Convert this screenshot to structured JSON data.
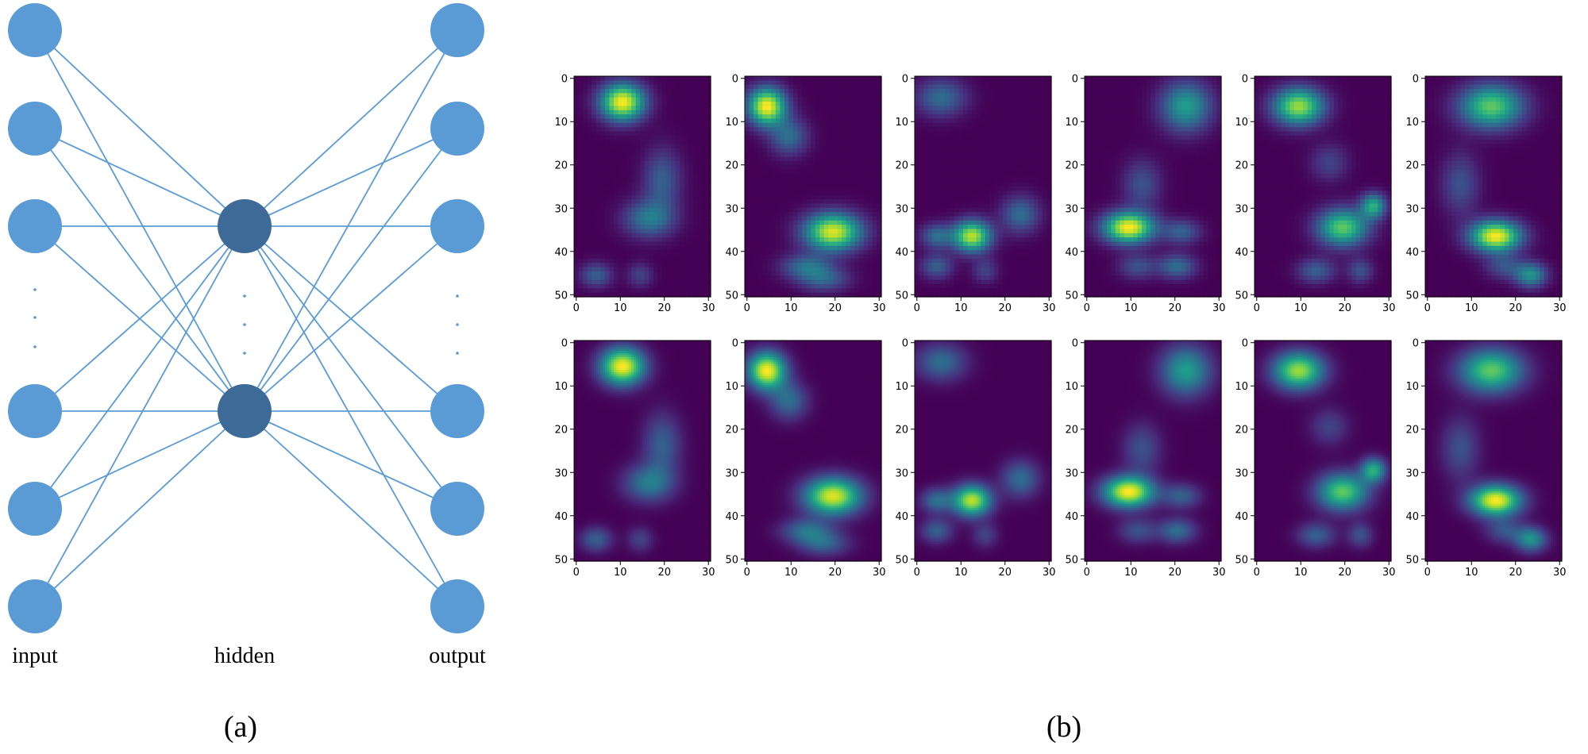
{
  "autoencoder": {
    "input_label": "input",
    "hidden_label": "hidden",
    "output_label": "output",
    "colors": {
      "outer_node": "#5b9bd5",
      "hidden_node": "#3e6a97",
      "edge": "#5b9bd5"
    },
    "input_nodes": 6,
    "hidden_nodes": 2,
    "output_nodes": 6
  },
  "panel_labels": {
    "a": "(a)",
    "b": "(b)"
  },
  "heatmaps": {
    "colormap": "viridis",
    "rows": 2,
    "columns": 6,
    "row_styles": [
      "pixelated",
      "smooth"
    ],
    "x_ticks": [
      "0",
      "10",
      "20",
      "30"
    ],
    "y_ticks": [
      "0",
      "10",
      "20",
      "30",
      "40",
      "50"
    ],
    "x_range": [
      0,
      31
    ],
    "y_range": [
      0,
      51
    ],
    "blobs": [
      [
        {
          "x": 11,
          "y": 6,
          "sx": 3.5,
          "sy": 3,
          "a": 1.0
        },
        {
          "x": 20,
          "y": 24,
          "sx": 3,
          "sy": 5,
          "a": 0.3
        },
        {
          "x": 17,
          "y": 33,
          "sx": 4,
          "sy": 3,
          "a": 0.4
        },
        {
          "x": 5,
          "y": 46,
          "sx": 2.5,
          "sy": 2,
          "a": 0.3
        },
        {
          "x": 15,
          "y": 46,
          "sx": 2,
          "sy": 2,
          "a": 0.2
        }
      ],
      [
        {
          "x": 5,
          "y": 7,
          "sx": 3,
          "sy": 3,
          "a": 1.0
        },
        {
          "x": 10,
          "y": 14,
          "sx": 3,
          "sy": 3,
          "a": 0.35
        },
        {
          "x": 20,
          "y": 36,
          "sx": 4.5,
          "sy": 3,
          "a": 0.95
        },
        {
          "x": 14,
          "y": 44,
          "sx": 4,
          "sy": 2,
          "a": 0.35
        },
        {
          "x": 18,
          "y": 47,
          "sx": 4,
          "sy": 2,
          "a": 0.3
        }
      ],
      [
        {
          "x": 6,
          "y": 5,
          "sx": 4,
          "sy": 3,
          "a": 0.35
        },
        {
          "x": 13,
          "y": 37,
          "sx": 3,
          "sy": 2.5,
          "a": 0.9
        },
        {
          "x": 5,
          "y": 37,
          "sx": 2.5,
          "sy": 2,
          "a": 0.35
        },
        {
          "x": 24,
          "y": 32,
          "sx": 3,
          "sy": 3,
          "a": 0.35
        },
        {
          "x": 5,
          "y": 44,
          "sx": 2.5,
          "sy": 2,
          "a": 0.3
        },
        {
          "x": 16,
          "y": 45,
          "sx": 2,
          "sy": 2,
          "a": 0.2
        }
      ],
      [
        {
          "x": 23,
          "y": 7,
          "sx": 4,
          "sy": 4,
          "a": 0.55
        },
        {
          "x": 10,
          "y": 35,
          "sx": 4,
          "sy": 2.5,
          "a": 1.0
        },
        {
          "x": 13,
          "y": 25,
          "sx": 3,
          "sy": 4,
          "a": 0.25
        },
        {
          "x": 22,
          "y": 36,
          "sx": 3,
          "sy": 2,
          "a": 0.3
        },
        {
          "x": 21,
          "y": 44,
          "sx": 3,
          "sy": 2,
          "a": 0.35
        },
        {
          "x": 12,
          "y": 44,
          "sx": 3,
          "sy": 2,
          "a": 0.25
        }
      ],
      [
        {
          "x": 10,
          "y": 7,
          "sx": 4,
          "sy": 3,
          "a": 0.85
        },
        {
          "x": 20,
          "y": 35,
          "sx": 4,
          "sy": 3,
          "a": 0.75
        },
        {
          "x": 27,
          "y": 30,
          "sx": 2,
          "sy": 2,
          "a": 0.6
        },
        {
          "x": 17,
          "y": 20,
          "sx": 3,
          "sy": 3,
          "a": 0.2
        },
        {
          "x": 14,
          "y": 45,
          "sx": 3,
          "sy": 2,
          "a": 0.3
        },
        {
          "x": 24,
          "y": 45,
          "sx": 2,
          "sy": 2,
          "a": 0.25
        }
      ],
      [
        {
          "x": 15,
          "y": 7,
          "sx": 5,
          "sy": 3.5,
          "a": 0.75
        },
        {
          "x": 16,
          "y": 37,
          "sx": 4,
          "sy": 2.5,
          "a": 1.0
        },
        {
          "x": 8,
          "y": 25,
          "sx": 3,
          "sy": 5,
          "a": 0.25
        },
        {
          "x": 24,
          "y": 46,
          "sx": 2.5,
          "sy": 2,
          "a": 0.5
        },
        {
          "x": 18,
          "y": 44,
          "sx": 3,
          "sy": 2,
          "a": 0.25
        }
      ]
    ]
  }
}
